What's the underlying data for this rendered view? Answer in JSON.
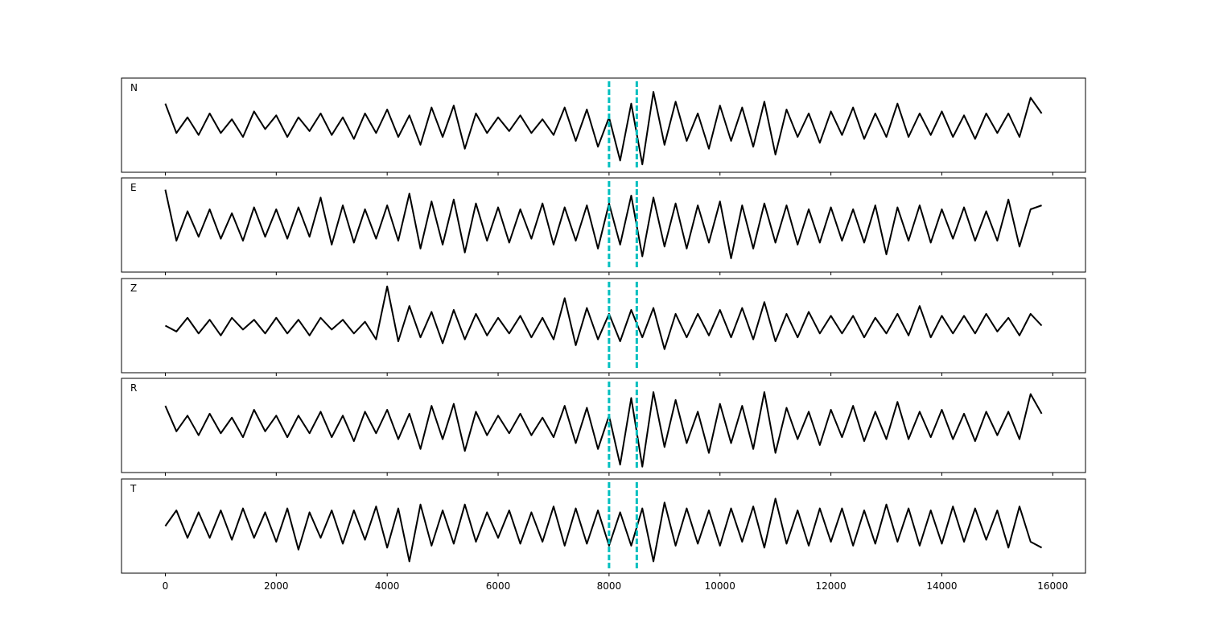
{
  "chart_data": [
    {
      "type": "line",
      "label": "N",
      "color": "#000000",
      "xlim": [
        -790,
        16590
      ],
      "ylim": [
        -1.2,
        1.2
      ],
      "xticks": [
        0,
        2000,
        4000,
        6000,
        8000,
        10000,
        12000,
        14000,
        16000
      ],
      "vlines": [
        8000,
        8500
      ],
      "vline_color": "#00bfbf",
      "x": [
        0,
        200,
        400,
        600,
        800,
        1000,
        1200,
        1400,
        1600,
        1800,
        2000,
        2200,
        2400,
        2600,
        2800,
        3000,
        3200,
        3400,
        3600,
        3800,
        4000,
        4200,
        4400,
        4600,
        4800,
        5000,
        5200,
        5400,
        5600,
        5800,
        6000,
        6200,
        6400,
        6600,
        6800,
        7000,
        7200,
        7400,
        7600,
        7800,
        8000,
        8200,
        8400,
        8600,
        8800,
        9000,
        9200,
        9400,
        9600,
        9800,
        10000,
        10200,
        10400,
        10600,
        10800,
        11000,
        11200,
        11400,
        11600,
        11800,
        12000,
        12200,
        12400,
        12600,
        12800,
        13000,
        13200,
        13400,
        13600,
        13800,
        14000,
        14200,
        14400,
        14600,
        14800,
        15000,
        15200,
        15400,
        15600,
        15800
      ],
      "values": [
        0.55,
        -0.2,
        0.2,
        -0.25,
        0.3,
        -0.2,
        0.15,
        -0.3,
        0.35,
        -0.1,
        0.25,
        -0.3,
        0.2,
        -0.15,
        0.3,
        -0.25,
        0.2,
        -0.35,
        0.3,
        -0.2,
        0.4,
        -0.3,
        0.25,
        -0.5,
        0.45,
        -0.3,
        0.5,
        -0.6,
        0.3,
        -0.2,
        0.2,
        -0.15,
        0.25,
        -0.2,
        0.15,
        -0.25,
        0.45,
        -0.4,
        0.4,
        -0.55,
        0.2,
        -0.9,
        0.55,
        -1.0,
        0.85,
        -0.5,
        0.6,
        -0.4,
        0.3,
        -0.6,
        0.5,
        -0.4,
        0.45,
        -0.55,
        0.6,
        -0.75,
        0.4,
        -0.3,
        0.3,
        -0.45,
        0.35,
        -0.25,
        0.45,
        -0.35,
        0.3,
        -0.3,
        0.55,
        -0.3,
        0.3,
        -0.25,
        0.35,
        -0.3,
        0.25,
        -0.35,
        0.3,
        -0.2,
        0.3,
        -0.3,
        0.7,
        0.3
      ]
    },
    {
      "type": "line",
      "label": "E",
      "color": "#000000",
      "xlim": [
        -790,
        16590
      ],
      "ylim": [
        -1.2,
        1.2
      ],
      "xticks": [
        0,
        2000,
        4000,
        6000,
        8000,
        10000,
        12000,
        14000,
        16000
      ],
      "vlines": [
        8000,
        8500
      ],
      "vline_color": "#00bfbf",
      "x": [
        0,
        200,
        400,
        600,
        800,
        1000,
        1200,
        1400,
        1600,
        1800,
        2000,
        2200,
        2400,
        2600,
        2800,
        3000,
        3200,
        3400,
        3600,
        3800,
        4000,
        4200,
        4400,
        4600,
        4800,
        5000,
        5200,
        5400,
        5600,
        5800,
        6000,
        6200,
        6400,
        6600,
        6800,
        7000,
        7200,
        7400,
        7600,
        7800,
        8000,
        8200,
        8400,
        8600,
        8800,
        9000,
        9200,
        9400,
        9600,
        9800,
        10000,
        10200,
        10400,
        10600,
        10800,
        11000,
        11200,
        11400,
        11600,
        11800,
        12000,
        12200,
        12400,
        12600,
        12800,
        13000,
        13200,
        13400,
        13600,
        13800,
        14000,
        14200,
        14400,
        14600,
        14800,
        15000,
        15200,
        15400,
        15600,
        15800
      ],
      "values": [
        0.9,
        -0.4,
        0.35,
        -0.3,
        0.4,
        -0.35,
        0.3,
        -0.4,
        0.45,
        -0.3,
        0.4,
        -0.35,
        0.45,
        -0.3,
        0.7,
        -0.5,
        0.5,
        -0.45,
        0.4,
        -0.35,
        0.5,
        -0.4,
        0.8,
        -0.6,
        0.6,
        -0.5,
        0.65,
        -0.7,
        0.55,
        -0.4,
        0.45,
        -0.45,
        0.4,
        -0.35,
        0.55,
        -0.5,
        0.45,
        -0.4,
        0.5,
        -0.6,
        0.55,
        -0.5,
        0.75,
        -0.8,
        0.7,
        -0.55,
        0.55,
        -0.6,
        0.5,
        -0.45,
        0.6,
        -0.85,
        0.5,
        -0.6,
        0.55,
        -0.45,
        0.5,
        -0.5,
        0.4,
        -0.45,
        0.45,
        -0.4,
        0.4,
        -0.45,
        0.5,
        -0.75,
        0.45,
        -0.4,
        0.5,
        -0.45,
        0.4,
        -0.35,
        0.45,
        -0.4,
        0.35,
        -0.4,
        0.65,
        -0.55,
        0.4,
        0.5
      ]
    },
    {
      "type": "line",
      "label": "Z",
      "color": "#000000",
      "xlim": [
        -790,
        16590
      ],
      "ylim": [
        -1.2,
        1.2
      ],
      "xticks": [
        0,
        2000,
        4000,
        6000,
        8000,
        10000,
        12000,
        14000,
        16000
      ],
      "vlines": [
        8000,
        8500
      ],
      "vline_color": "#00bfbf",
      "x": [
        0,
        200,
        400,
        600,
        800,
        1000,
        1200,
        1400,
        1600,
        1800,
        2000,
        2200,
        2400,
        2600,
        2800,
        3000,
        3200,
        3400,
        3600,
        3800,
        4000,
        4200,
        4400,
        4600,
        4800,
        5000,
        5200,
        5400,
        5600,
        5800,
        6000,
        6200,
        6400,
        6600,
        6800,
        7000,
        7200,
        7400,
        7600,
        7800,
        8000,
        8200,
        8400,
        8600,
        8800,
        9000,
        9200,
        9400,
        9600,
        9800,
        10000,
        10200,
        10400,
        10600,
        10800,
        11000,
        11200,
        11400,
        11600,
        11800,
        12000,
        12200,
        12400,
        12600,
        12800,
        13000,
        13200,
        13400,
        13600,
        13800,
        14000,
        14200,
        14400,
        14600,
        14800,
        15000,
        15200,
        15400,
        15600,
        15800
      ],
      "values": [
        0.0,
        -0.15,
        0.2,
        -0.2,
        0.15,
        -0.25,
        0.2,
        -0.1,
        0.15,
        -0.2,
        0.2,
        -0.2,
        0.15,
        -0.25,
        0.2,
        -0.1,
        0.15,
        -0.2,
        0.1,
        -0.35,
        1.0,
        -0.4,
        0.5,
        -0.3,
        0.35,
        -0.45,
        0.4,
        -0.35,
        0.3,
        -0.25,
        0.2,
        -0.2,
        0.25,
        -0.3,
        0.2,
        -0.35,
        0.7,
        -0.5,
        0.45,
        -0.35,
        0.3,
        -0.4,
        0.4,
        -0.3,
        0.45,
        -0.6,
        0.3,
        -0.3,
        0.3,
        -0.25,
        0.4,
        -0.3,
        0.45,
        -0.35,
        0.6,
        -0.4,
        0.3,
        -0.3,
        0.35,
        -0.2,
        0.25,
        -0.2,
        0.25,
        -0.3,
        0.2,
        -0.2,
        0.3,
        -0.25,
        0.5,
        -0.3,
        0.25,
        -0.2,
        0.25,
        -0.2,
        0.3,
        -0.15,
        0.2,
        -0.25,
        0.3,
        0.0
      ]
    },
    {
      "type": "line",
      "label": "R",
      "color": "#000000",
      "xlim": [
        -790,
        16590
      ],
      "ylim": [
        -1.2,
        1.2
      ],
      "xticks": [
        0,
        2000,
        4000,
        6000,
        8000,
        10000,
        12000,
        14000,
        16000
      ],
      "vlines": [
        8000,
        8500
      ],
      "vline_color": "#00bfbf",
      "x": [
        0,
        200,
        400,
        600,
        800,
        1000,
        1200,
        1400,
        1600,
        1800,
        2000,
        2200,
        2400,
        2600,
        2800,
        3000,
        3200,
        3400,
        3600,
        3800,
        4000,
        4200,
        4400,
        4600,
        4800,
        5000,
        5200,
        5400,
        5600,
        5800,
        6000,
        6200,
        6400,
        6600,
        6800,
        7000,
        7200,
        7400,
        7600,
        7800,
        8000,
        8200,
        8400,
        8600,
        8800,
        9000,
        9200,
        9400,
        9600,
        9800,
        10000,
        10200,
        10400,
        10600,
        10800,
        11000,
        11200,
        11400,
        11600,
        11800,
        12000,
        12200,
        12400,
        12600,
        12800,
        13000,
        13200,
        13400,
        13600,
        13800,
        14000,
        14200,
        14400,
        14600,
        14800,
        15000,
        15200,
        15400,
        15600,
        15800
      ],
      "values": [
        0.5,
        -0.15,
        0.25,
        -0.25,
        0.3,
        -0.2,
        0.2,
        -0.3,
        0.4,
        -0.15,
        0.25,
        -0.3,
        0.25,
        -0.2,
        0.35,
        -0.3,
        0.25,
        -0.4,
        0.35,
        -0.2,
        0.4,
        -0.35,
        0.3,
        -0.6,
        0.5,
        -0.35,
        0.55,
        -0.65,
        0.35,
        -0.25,
        0.25,
        -0.2,
        0.3,
        -0.25,
        0.2,
        -0.3,
        0.5,
        -0.45,
        0.45,
        -0.6,
        0.25,
        -1.0,
        0.7,
        -1.05,
        0.85,
        -0.55,
        0.65,
        -0.45,
        0.35,
        -0.7,
        0.55,
        -0.45,
        0.5,
        -0.6,
        0.85,
        -0.7,
        0.45,
        -0.35,
        0.35,
        -0.5,
        0.4,
        -0.3,
        0.5,
        -0.4,
        0.35,
        -0.35,
        0.6,
        -0.35,
        0.35,
        -0.3,
        0.4,
        -0.35,
        0.3,
        -0.4,
        0.35,
        -0.25,
        0.35,
        -0.35,
        0.8,
        0.3
      ]
    },
    {
      "type": "line",
      "label": "T",
      "color": "#000000",
      "xlim": [
        -790,
        16590
      ],
      "ylim": [
        -1.2,
        1.2
      ],
      "xticks": [
        0,
        2000,
        4000,
        6000,
        8000,
        10000,
        12000,
        14000,
        16000
      ],
      "vlines": [
        8000,
        8500
      ],
      "vline_color": "#00bfbf",
      "x": [
        0,
        200,
        400,
        600,
        800,
        1000,
        1200,
        1400,
        1600,
        1800,
        2000,
        2200,
        2400,
        2600,
        2800,
        3000,
        3200,
        3400,
        3600,
        3800,
        4000,
        4200,
        4400,
        4600,
        4800,
        5000,
        5200,
        5400,
        5600,
        5800,
        6000,
        6200,
        6400,
        6600,
        6800,
        7000,
        7200,
        7400,
        7600,
        7800,
        8000,
        8200,
        8400,
        8600,
        8800,
        9000,
        9200,
        9400,
        9600,
        9800,
        10000,
        10200,
        10400,
        10600,
        10800,
        11000,
        11200,
        11400,
        11600,
        11800,
        12000,
        12200,
        12400,
        12600,
        12800,
        13000,
        13200,
        13400,
        13600,
        13800,
        14000,
        14200,
        14400,
        14600,
        14800,
        15000,
        15200,
        15400,
        15600,
        15800
      ],
      "values": [
        0.0,
        0.4,
        -0.3,
        0.35,
        -0.3,
        0.4,
        -0.35,
        0.45,
        -0.3,
        0.35,
        -0.4,
        0.45,
        -0.6,
        0.35,
        -0.3,
        0.4,
        -0.45,
        0.4,
        -0.35,
        0.5,
        -0.55,
        0.45,
        -0.9,
        0.55,
        -0.5,
        0.4,
        -0.45,
        0.55,
        -0.4,
        0.35,
        -0.3,
        0.4,
        -0.45,
        0.35,
        -0.4,
        0.5,
        -0.5,
        0.45,
        -0.45,
        0.4,
        -0.5,
        0.35,
        -0.5,
        0.45,
        -0.9,
        0.6,
        -0.5,
        0.45,
        -0.45,
        0.4,
        -0.5,
        0.45,
        -0.4,
        0.5,
        -0.55,
        0.7,
        -0.45,
        0.4,
        -0.5,
        0.45,
        -0.4,
        0.45,
        -0.5,
        0.4,
        -0.45,
        0.55,
        -0.4,
        0.45,
        -0.5,
        0.4,
        -0.45,
        0.5,
        -0.4,
        0.45,
        -0.35,
        0.4,
        -0.55,
        0.5,
        -0.4,
        -0.55
      ]
    }
  ]
}
